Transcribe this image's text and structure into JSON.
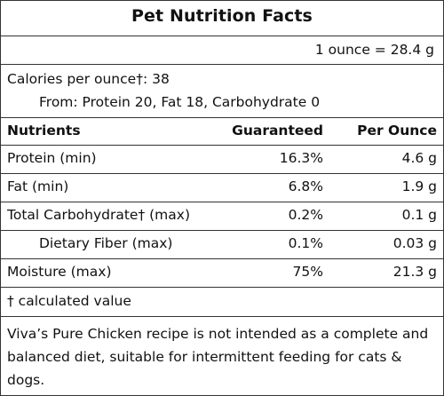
{
  "title": "Pet Nutrition Facts",
  "serving": "1 ounce = 28.4 g",
  "calories": {
    "line": "Calories per ounce†: 38",
    "from": "From: Protein 20, Fat 18, Carbohydrate 0"
  },
  "table": {
    "headers": {
      "nutrients": "Nutrients",
      "guaranteed": "Guaranteed",
      "per_ounce": "Per Ounce"
    },
    "rows": [
      {
        "name": "Protein (min)",
        "guaranteed": "16.3%",
        "per_ounce": "4.6 g"
      },
      {
        "name": "Fat (min)",
        "guaranteed": "6.8%",
        "per_ounce": "1.9 g"
      },
      {
        "name": "Total Carbohydrate† (max)",
        "guaranteed": "0.2%",
        "per_ounce": "0.1 g"
      },
      {
        "name": "Dietary Fiber (max)",
        "guaranteed": "0.1%",
        "per_ounce": "0.03 g"
      },
      {
        "name": "Moisture (max)",
        "guaranteed": "75%",
        "per_ounce": "21.3 g"
      }
    ]
  },
  "footnote": "† calculated value",
  "disclaimer": "Viva’s Pure Chicken recipe is not intended as a complete and balanced diet, suitable for intermittent feeding for cats & dogs."
}
